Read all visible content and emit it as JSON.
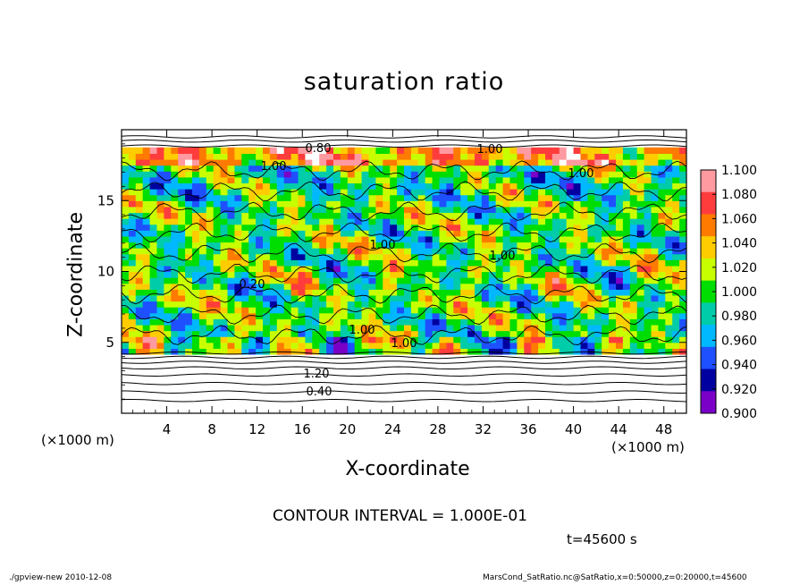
{
  "chart_data": {
    "type": "heatmap",
    "title": "saturation ratio",
    "xlabel": "X-coordinate",
    "ylabel": "Z-coordinate",
    "x_unit": "(×1000 m)",
    "xlim": [
      0,
      50
    ],
    "ylim": [
      0,
      20
    ],
    "x_ticks": [
      4,
      8,
      12,
      16,
      20,
      24,
      28,
      32,
      36,
      40,
      44,
      48
    ],
    "y_ticks": [
      5,
      10,
      15
    ],
    "colorbar": {
      "min": 0.9,
      "max": 1.1,
      "labels": [
        "1.100",
        "1.080",
        "1.060",
        "1.040",
        "1.020",
        "1.000",
        "0.980",
        "0.960",
        "0.940",
        "0.920",
        "0.900"
      ],
      "colors": [
        "#ff9aa0",
        "#ff3c3c",
        "#ff7a00",
        "#ffcc00",
        "#c8ff00",
        "#00dd00",
        "#00ccaa",
        "#00b8ff",
        "#1e50ff",
        "#0000a0",
        "#7a00c8"
      ]
    },
    "contour_labels": [
      "0.80",
      "1.00",
      "1.00",
      "1.00",
      "1.00",
      "1.00",
      "1.00",
      "1.00",
      "1.20",
      "0.40",
      "0.20"
    ],
    "contour_interval": "CONTOUR INTERVAL = 1.000E-01",
    "time": "t=45600 s",
    "footer_left": "./gpview-new  2010-12-08",
    "footer_right": "MarsCond_SatRatio.nc@SatRatio,x=0:50000,z=0:20000,t=45600"
  }
}
